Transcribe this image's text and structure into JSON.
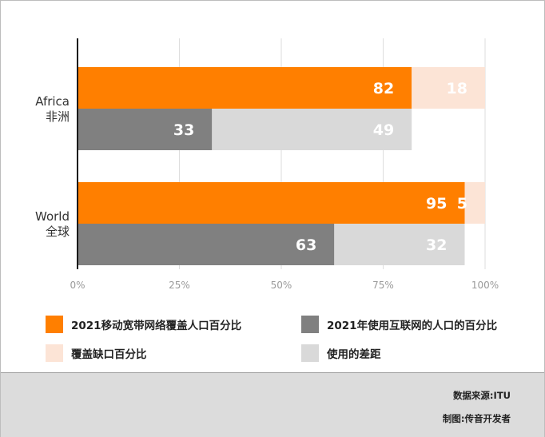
{
  "chart_data": {
    "type": "bar",
    "orientation": "horizontal",
    "stacked": true,
    "categories": [
      {
        "en": "Africa",
        "zh": "非洲"
      },
      {
        "en": "World",
        "zh": "全球"
      }
    ],
    "series": [
      {
        "name": "2021移动宽带网络覆盖人口百分比",
        "values": [
          82,
          95
        ],
        "color": "#ff7f00",
        "row": 0,
        "stack": 0
      },
      {
        "name": "覆盖缺口百分比",
        "values": [
          18,
          5
        ],
        "color": "#fce4d6",
        "row": 0,
        "stack": 1
      },
      {
        "name": "2021年使用互联网的人口的百分比",
        "values": [
          33,
          63
        ],
        "color": "#808080",
        "row": 1,
        "stack": 0
      },
      {
        "name": "使用的差距",
        "values": [
          49,
          32
        ],
        "color": "#d9d9d9",
        "row": 1,
        "stack": 1
      }
    ],
    "x_ticks": [
      "0%",
      "25%",
      "50%",
      "75%",
      "100%"
    ],
    "xlim": [
      0,
      100
    ],
    "grid": true,
    "legend_position": "bottom"
  },
  "footer": {
    "source": "数据来源:ITU",
    "made_by": "制图:传音开发者"
  }
}
